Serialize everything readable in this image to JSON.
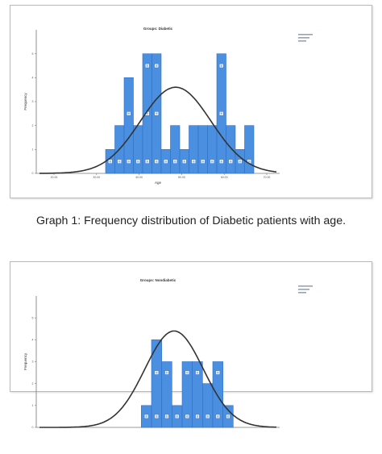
{
  "caption": "Graph 1: Frequency distribution of Diabetic patients with age.",
  "colors": {
    "bar": "#4a8fe0",
    "bar_edge": "#2f6fc4",
    "curve": "#333333",
    "panel_border": "#b9b9b9"
  },
  "chart_data": [
    {
      "type": "bar",
      "title": "Groups: Diabetic",
      "xlabel": "Age",
      "ylabel": "Frequency",
      "values": [
        1,
        2,
        4,
        2,
        5,
        5,
        1,
        2,
        1,
        2,
        2,
        2,
        5,
        2,
        1,
        2
      ],
      "ylim": [
        0,
        6
      ],
      "y_ticks": [
        0,
        1,
        2,
        3,
        4,
        5
      ],
      "x_ticks": [
        "20.00",
        "30.00",
        "40.00",
        "50.00",
        "60.00",
        "70.00"
      ],
      "normal_curve": true,
      "legend": "top-right"
    },
    {
      "type": "bar",
      "title": "Groups: Nondiabetic",
      "ylabel": "Frequency",
      "values": [
        0,
        0,
        1,
        4,
        3,
        1,
        3,
        3,
        2,
        3,
        1,
        0
      ],
      "ylim": [
        0,
        6
      ],
      "y_ticks": [
        0,
        1,
        2,
        3,
        4,
        5
      ],
      "normal_curve": true,
      "legend": "top-right"
    }
  ]
}
